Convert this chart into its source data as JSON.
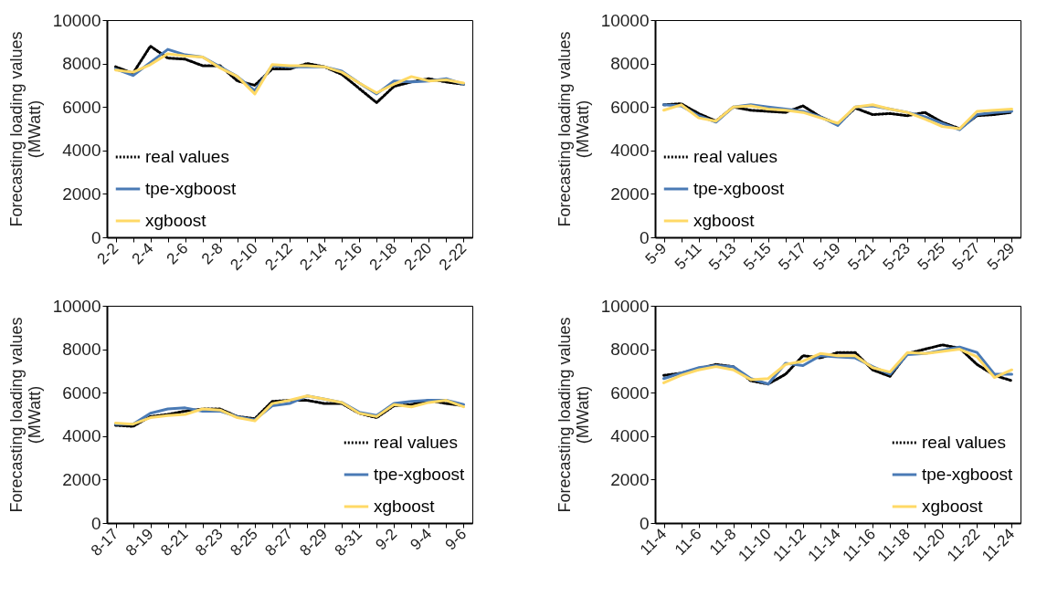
{
  "chart_data": [
    {
      "type": "line",
      "ylabel": "Forecasting loading values\n(MWatt)",
      "categories": [
        "2-2",
        null,
        "2-4",
        null,
        "2-6",
        null,
        "2-8",
        null,
        "2-10",
        null,
        "2-12",
        null,
        "2-14",
        null,
        "2-16",
        null,
        "2-18",
        null,
        "2-20",
        null,
        "2-22"
      ],
      "ylim": [
        0,
        10000
      ],
      "yticks": [
        0,
        2000,
        4000,
        6000,
        8000,
        10000
      ],
      "legend": "bottom left",
      "grid": false,
      "series": [
        {
          "name": "real values",
          "color": "#000000",
          "line_style": "dotted",
          "values": [
            7850,
            7550,
            8800,
            8250,
            8200,
            7900,
            7900,
            7200,
            7000,
            7750,
            7750,
            8000,
            7850,
            7500,
            6850,
            6200,
            6950,
            7150,
            7300,
            7150,
            7050
          ]
        },
        {
          "name": "tpe-xgboost",
          "color": "#4a7ab5",
          "line_style": "solid",
          "values": [
            7750,
            7450,
            8050,
            8650,
            8400,
            8300,
            7850,
            7400,
            6750,
            7900,
            7850,
            7850,
            7850,
            7650,
            7100,
            6600,
            7200,
            7150,
            7200,
            7300,
            7050
          ]
        },
        {
          "name": "xgboost",
          "color": "#ffd966",
          "line_style": "solid",
          "values": [
            7700,
            7600,
            7950,
            8450,
            8350,
            8300,
            7800,
            7400,
            6600,
            7950,
            7900,
            7900,
            7850,
            7600,
            7100,
            6650,
            7050,
            7400,
            7200,
            7250,
            7100
          ]
        }
      ]
    },
    {
      "type": "line",
      "ylabel": "Forecasting loading values\n(MWatt)",
      "categories": [
        "5-9",
        null,
        "5-11",
        null,
        "5-13",
        null,
        "5-15",
        null,
        "5-17",
        null,
        "5-19",
        null,
        "5-21",
        null,
        "5-23",
        null,
        "5-25",
        null,
        "5-27",
        null,
        "5-29"
      ],
      "ylim": [
        0,
        10000
      ],
      "yticks": [
        0,
        2000,
        4000,
        6000,
        8000,
        10000
      ],
      "legend": "bottom left",
      "grid": false,
      "series": [
        {
          "name": "real values",
          "color": "#000000",
          "line_style": "dotted",
          "values": [
            6100,
            6150,
            5700,
            5350,
            6000,
            5850,
            5800,
            5750,
            6050,
            5550,
            5200,
            5950,
            5650,
            5700,
            5600,
            5750,
            5300,
            5000,
            5600,
            5650,
            5750
          ]
        },
        {
          "name": "tpe-xgboost",
          "color": "#4a7ab5",
          "line_style": "solid",
          "values": [
            6100,
            6050,
            5600,
            5300,
            6000,
            6100,
            6000,
            5900,
            5800,
            5550,
            5150,
            6000,
            6050,
            5900,
            5750,
            5550,
            5250,
            4950,
            5650,
            5750,
            5800
          ]
        },
        {
          "name": "xgboost",
          "color": "#ffd966",
          "line_style": "solid",
          "values": [
            5850,
            6100,
            5500,
            5350,
            6000,
            6050,
            5900,
            5850,
            5750,
            5500,
            5250,
            6000,
            6100,
            5900,
            5750,
            5450,
            5100,
            5000,
            5800,
            5850,
            5900
          ]
        }
      ]
    },
    {
      "type": "line",
      "ylabel": "Forecasting loading values\n(MWatt)",
      "categories": [
        "8-17",
        null,
        "8-19",
        null,
        "8-21",
        null,
        "8-23",
        null,
        "8-25",
        null,
        "8-27",
        null,
        "8-29",
        null,
        "8-31",
        null,
        "9-2",
        null,
        "9-4",
        null,
        "9-6"
      ],
      "ylim": [
        0,
        10000
      ],
      "yticks": [
        0,
        2000,
        4000,
        6000,
        8000,
        10000
      ],
      "legend": "bottom right",
      "grid": false,
      "series": [
        {
          "name": "real values",
          "color": "#000000",
          "line_style": "dotted",
          "values": [
            4500,
            4450,
            4900,
            5000,
            5150,
            5250,
            5250,
            4900,
            4800,
            5600,
            5650,
            5650,
            5500,
            5500,
            5050,
            4850,
            5400,
            5450,
            5650,
            5500,
            5400
          ]
        },
        {
          "name": "tpe-xgboost",
          "color": "#4a7ab5",
          "line_style": "solid",
          "values": [
            4550,
            4550,
            5050,
            5250,
            5300,
            5150,
            5150,
            4900,
            4750,
            5400,
            5500,
            5850,
            5700,
            5550,
            5100,
            4950,
            5500,
            5600,
            5650,
            5650,
            5450
          ]
        },
        {
          "name": "xgboost",
          "color": "#ffd966",
          "line_style": "solid",
          "values": [
            4600,
            4550,
            4850,
            4950,
            5000,
            5250,
            5200,
            4850,
            4700,
            5500,
            5650,
            5850,
            5700,
            5550,
            5050,
            4900,
            5450,
            5350,
            5550,
            5650,
            5350
          ]
        }
      ]
    },
    {
      "type": "line",
      "ylabel": "Forecasting loading values\n(MWatt)",
      "categories": [
        "11-4",
        null,
        "11-6",
        null,
        "11-8",
        null,
        "11-10",
        null,
        "11-12",
        null,
        "11-14",
        null,
        "11-16",
        null,
        "11-18",
        null,
        "11-20",
        null,
        "11-22",
        null,
        "11-24"
      ],
      "ylim": [
        0,
        10000
      ],
      "yticks": [
        0,
        2000,
        4000,
        6000,
        8000,
        10000
      ],
      "legend": "bottom right",
      "grid": false,
      "series": [
        {
          "name": "real values",
          "color": "#000000",
          "line_style": "dotted",
          "values": [
            6800,
            6900,
            7100,
            7300,
            7200,
            6550,
            6400,
            6850,
            7700,
            7600,
            7850,
            7850,
            7050,
            6750,
            7800,
            8000,
            8200,
            8050,
            7300,
            6800,
            6550
          ]
        },
        {
          "name": "tpe-xgboost",
          "color": "#4a7ab5",
          "line_style": "solid",
          "values": [
            6650,
            6900,
            7150,
            7250,
            7200,
            6650,
            6400,
            7350,
            7250,
            7700,
            7650,
            7600,
            7200,
            6850,
            7750,
            7800,
            7950,
            8100,
            7850,
            6850,
            6850
          ]
        },
        {
          "name": "xgboost",
          "color": "#ffd966",
          "line_style": "solid",
          "values": [
            6450,
            6800,
            7050,
            7200,
            7050,
            6600,
            6650,
            7300,
            7450,
            7800,
            7700,
            7700,
            7150,
            6950,
            7850,
            7800,
            7900,
            8000,
            7650,
            6700,
            7050
          ]
        }
      ]
    }
  ]
}
